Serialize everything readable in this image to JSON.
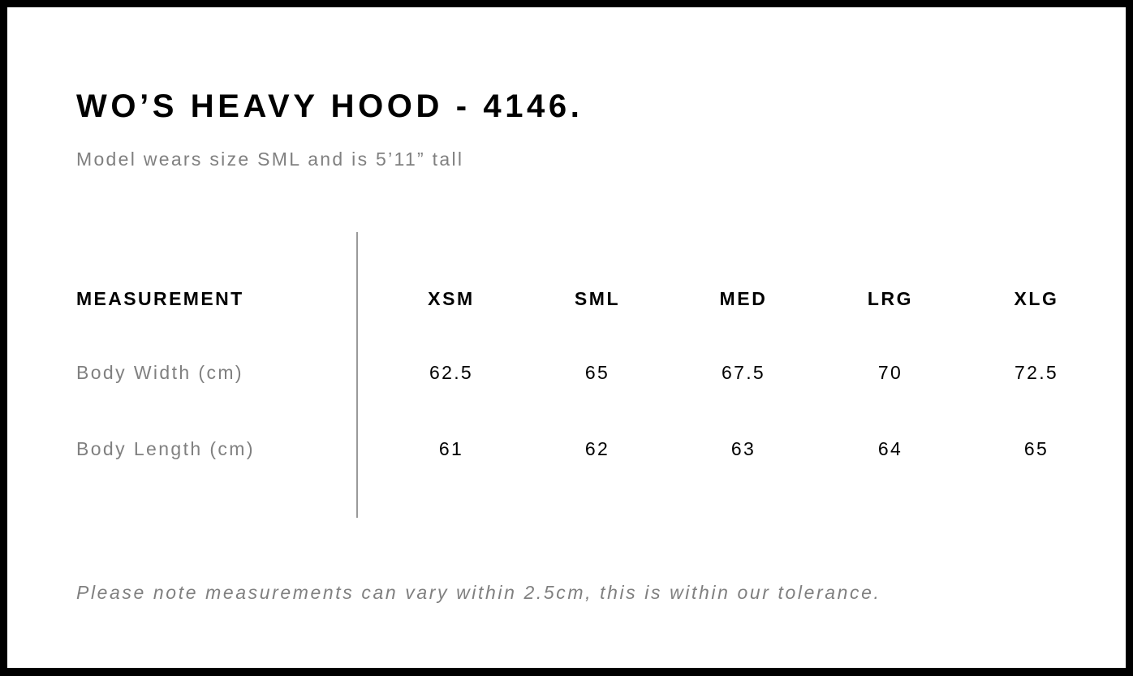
{
  "title": "WO’S HEAVY HOOD - 4146.",
  "subtitle": "Model wears size SML and is 5’11” tall",
  "table": {
    "header_label": "MEASUREMENT",
    "sizes": [
      "XSM",
      "SML",
      "MED",
      "LRG",
      "XLG"
    ],
    "rows": [
      {
        "label": "Body Width (cm)",
        "values": [
          "62.5",
          "65",
          "67.5",
          "70",
          "72.5"
        ]
      },
      {
        "label": "Body Length (cm)",
        "values": [
          "61",
          "62",
          "63",
          "64",
          "65"
        ]
      }
    ]
  },
  "note": "Please note measurements can vary within 2.5cm, this is within our tolerance."
}
